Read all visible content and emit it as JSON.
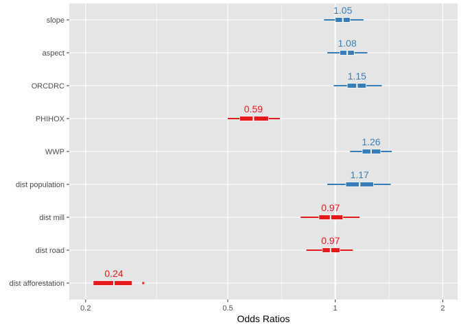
{
  "chart_data": {
    "type": "forest",
    "xlabel": "Odds Ratios",
    "x_scale": "log",
    "xlim": [
      0.18,
      2.2
    ],
    "x_ticks": [
      {
        "value": 0.2,
        "label": "0.2"
      },
      {
        "value": 0.5,
        "label": "0.5"
      },
      {
        "value": 1,
        "label": "1"
      },
      {
        "value": 2,
        "label": "2"
      }
    ],
    "x_minor_ticks": [
      0.3162,
      0.7071,
      1.4142
    ],
    "reference_line": 1,
    "grid": true,
    "colors": {
      "positive": "#377eb8",
      "negative": "#e41a1c",
      "panel": "#e5e5e5",
      "grid": "#ffffff"
    },
    "rows": [
      {
        "label": "slope",
        "estimate": 1.05,
        "estimate_label": "1.05",
        "ci_low": 0.93,
        "ci_high": 1.2,
        "box_low": 1.0,
        "box_high": 1.1,
        "direction": "positive"
      },
      {
        "label": "aspect",
        "estimate": 1.08,
        "estimate_label": "1.08",
        "ci_low": 0.95,
        "ci_high": 1.23,
        "box_low": 1.03,
        "box_high": 1.13,
        "direction": "positive"
      },
      {
        "label": "ORCDRC",
        "estimate": 1.15,
        "estimate_label": "1.15",
        "ci_low": 0.99,
        "ci_high": 1.35,
        "box_low": 1.08,
        "box_high": 1.22,
        "direction": "positive"
      },
      {
        "label": "PHIHOX",
        "estimate": 0.59,
        "estimate_label": "0.59",
        "ci_low": 0.5,
        "ci_high": 0.7,
        "box_low": 0.54,
        "box_high": 0.65,
        "direction": "negative"
      },
      {
        "label": "WWP",
        "estimate": 1.26,
        "estimate_label": "1.26",
        "ci_low": 1.1,
        "ci_high": 1.44,
        "box_low": 1.19,
        "box_high": 1.34,
        "direction": "positive"
      },
      {
        "label": "dist population",
        "estimate": 1.17,
        "estimate_label": "1.17",
        "ci_low": 0.95,
        "ci_high": 1.43,
        "box_low": 1.07,
        "box_high": 1.28,
        "direction": "positive"
      },
      {
        "label": "dist mill",
        "estimate": 0.97,
        "estimate_label": "0.97",
        "ci_low": 0.8,
        "ci_high": 1.17,
        "box_low": 0.9,
        "box_high": 1.05,
        "direction": "negative"
      },
      {
        "label": "dist road",
        "estimate": 0.97,
        "estimate_label": "0.97",
        "ci_low": 0.83,
        "ci_high": 1.12,
        "box_low": 0.92,
        "box_high": 1.03,
        "direction": "negative"
      },
      {
        "label": "dist afforestation",
        "estimate": 0.24,
        "estimate_label": "0.24",
        "ci_low": 0.21,
        "ci_high": 0.29,
        "box_low": 0.21,
        "box_high": 0.27,
        "direction": "negative",
        "ci_truncated_high": true
      }
    ]
  }
}
